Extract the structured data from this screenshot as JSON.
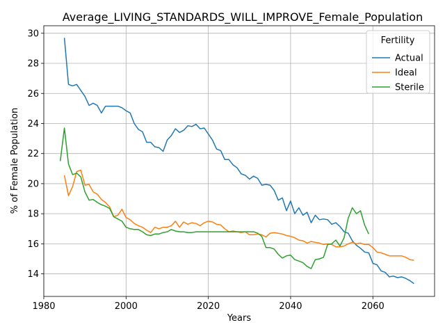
{
  "chart_data": {
    "type": "line",
    "title": "Average_LIVING_STANDARDS_WILL_IMPROVE_Female_Population",
    "xlabel": "Years",
    "ylabel": "% of Female Population",
    "xlim": [
      1980,
      2075
    ],
    "ylim": [
      12.5,
      30.5
    ],
    "xticks": [
      1980,
      2000,
      2020,
      2040,
      2060
    ],
    "yticks": [
      14,
      16,
      18,
      20,
      22,
      24,
      26,
      28,
      30
    ],
    "grid": true,
    "legend": {
      "title": "Fertility",
      "position": "top-right"
    },
    "series": [
      {
        "name": "Actual",
        "color": "#1f77b4",
        "x": [
          1985,
          1986,
          1987,
          1988,
          1989,
          1990,
          1991,
          1992,
          1993,
          1994,
          1995,
          1996,
          1997,
          1998,
          1999,
          2000,
          2001,
          2002,
          2003,
          2004,
          2005,
          2006,
          2007,
          2008,
          2009,
          2010,
          2011,
          2012,
          2013,
          2014,
          2015,
          2016,
          2017,
          2018,
          2019,
          2020,
          2021,
          2022,
          2023,
          2024,
          2025,
          2026,
          2027,
          2028,
          2029,
          2030,
          2031,
          2032,
          2033,
          2034,
          2035,
          2036,
          2037,
          2038,
          2039,
          2040,
          2041,
          2042,
          2043,
          2044,
          2045,
          2046,
          2047,
          2048,
          2049,
          2050,
          2051,
          2052,
          2053,
          2054,
          2055,
          2056,
          2057,
          2058,
          2059,
          2060,
          2061,
          2062,
          2063,
          2064,
          2065,
          2066,
          2067,
          2068,
          2069,
          2070
        ],
        "values": [
          29.7,
          26.6,
          26.5,
          26.6,
          26.2,
          25.8,
          25.2,
          25.35,
          25.2,
          24.7,
          25.15,
          25.15,
          25.15,
          25.15,
          25.05,
          24.85,
          24.7,
          24.0,
          23.6,
          23.45,
          22.75,
          22.75,
          22.45,
          22.4,
          22.15,
          22.9,
          23.2,
          23.65,
          23.4,
          23.55,
          23.85,
          23.8,
          23.95,
          23.65,
          23.7,
          23.3,
          22.9,
          22.3,
          22.2,
          21.6,
          21.6,
          21.25,
          21.05,
          20.65,
          20.55,
          20.3,
          20.5,
          20.35,
          19.9,
          19.95,
          19.9,
          19.55,
          18.9,
          19.05,
          18.2,
          18.85,
          18.0,
          18.4,
          17.9,
          18.1,
          17.4,
          17.9,
          17.6,
          17.65,
          17.6,
          17.3,
          17.4,
          17.15,
          16.8,
          16.7,
          16.2,
          15.9,
          15.7,
          15.45,
          15.4,
          14.7,
          14.6,
          14.2,
          14.1,
          13.8,
          13.85,
          13.75,
          13.8,
          13.7,
          13.55,
          13.35
        ]
      },
      {
        "name": "Ideal",
        "color": "#ff7f0e",
        "x": [
          1985,
          1986,
          1987,
          1988,
          1989,
          1990,
          1991,
          1992,
          1993,
          1994,
          1995,
          1996,
          1997,
          1998,
          1999,
          2000,
          2001,
          2002,
          2003,
          2004,
          2005,
          2006,
          2007,
          2008,
          2009,
          2010,
          2011,
          2012,
          2013,
          2014,
          2015,
          2016,
          2017,
          2018,
          2019,
          2020,
          2021,
          2022,
          2023,
          2024,
          2025,
          2026,
          2027,
          2028,
          2029,
          2030,
          2031,
          2032,
          2033,
          2034,
          2035,
          2036,
          2037,
          2038,
          2039,
          2040,
          2041,
          2042,
          2043,
          2044,
          2045,
          2046,
          2047,
          2048,
          2049,
          2050,
          2051,
          2052,
          2053,
          2054,
          2055,
          2056,
          2057,
          2058,
          2059,
          2060,
          2061,
          2062,
          2063,
          2064,
          2065,
          2066,
          2067,
          2068,
          2069,
          2070
        ],
        "values": [
          20.55,
          19.2,
          19.8,
          20.8,
          20.9,
          19.9,
          19.95,
          19.45,
          19.3,
          18.95,
          18.75,
          18.45,
          17.8,
          17.9,
          18.3,
          17.75,
          17.6,
          17.35,
          17.2,
          17.1,
          16.9,
          16.75,
          17.1,
          17.0,
          17.1,
          17.1,
          17.2,
          17.5,
          17.1,
          17.45,
          17.3,
          17.4,
          17.35,
          17.2,
          17.4,
          17.5,
          17.45,
          17.3,
          17.25,
          17.0,
          16.8,
          16.85,
          16.8,
          16.75,
          16.8,
          16.6,
          16.6,
          16.65,
          16.6,
          16.45,
          16.7,
          16.75,
          16.7,
          16.65,
          16.55,
          16.5,
          16.4,
          16.25,
          16.2,
          16.05,
          16.15,
          16.1,
          16.05,
          15.95,
          16.0,
          15.95,
          15.8,
          15.8,
          15.85,
          16.0,
          16.1,
          16.0,
          16.05,
          15.95,
          15.95,
          15.75,
          15.45,
          15.4,
          15.3,
          15.2,
          15.2,
          15.2,
          15.2,
          15.1,
          14.95,
          14.9
        ]
      },
      {
        "name": "Sterile",
        "color": "#2ca02c",
        "x": [
          1984,
          1985,
          1986,
          1987,
          1988,
          1989,
          1990,
          1991,
          1992,
          1993,
          1994,
          1995,
          1996,
          1997,
          1998,
          1999,
          2000,
          2001,
          2002,
          2003,
          2004,
          2005,
          2006,
          2007,
          2008,
          2009,
          2010,
          2011,
          2012,
          2013,
          2014,
          2015,
          2016,
          2017,
          2018,
          2019,
          2020,
          2021,
          2022,
          2023,
          2024,
          2025,
          2026,
          2027,
          2028,
          2029,
          2030,
          2031,
          2032,
          2033,
          2034,
          2035,
          2036,
          2037,
          2038,
          2039,
          2040,
          2041,
          2042,
          2043,
          2044,
          2045,
          2046,
          2047,
          2048,
          2049,
          2050,
          2051,
          2052,
          2053,
          2054,
          2055,
          2056,
          2057,
          2058,
          2059
        ],
        "values": [
          21.5,
          23.7,
          21.3,
          20.6,
          20.7,
          20.45,
          19.45,
          18.9,
          18.95,
          18.75,
          18.6,
          18.5,
          18.35,
          17.8,
          17.65,
          17.5,
          17.1,
          17.0,
          16.95,
          16.95,
          16.8,
          16.6,
          16.55,
          16.65,
          16.65,
          16.75,
          16.8,
          16.95,
          16.85,
          16.8,
          16.8,
          16.75,
          16.75,
          16.8,
          16.8,
          16.8,
          16.8,
          16.8,
          16.8,
          16.8,
          16.8,
          16.8,
          16.8,
          16.8,
          16.8,
          16.8,
          16.8,
          16.8,
          16.7,
          16.5,
          15.75,
          15.75,
          15.65,
          15.3,
          15.05,
          15.2,
          15.25,
          14.95,
          14.85,
          14.75,
          14.5,
          14.35,
          14.95,
          15.0,
          15.1,
          15.95,
          16.0,
          16.25,
          15.85,
          16.4,
          17.7,
          18.4,
          18.0,
          18.2,
          17.25,
          16.65
        ]
      }
    ]
  }
}
